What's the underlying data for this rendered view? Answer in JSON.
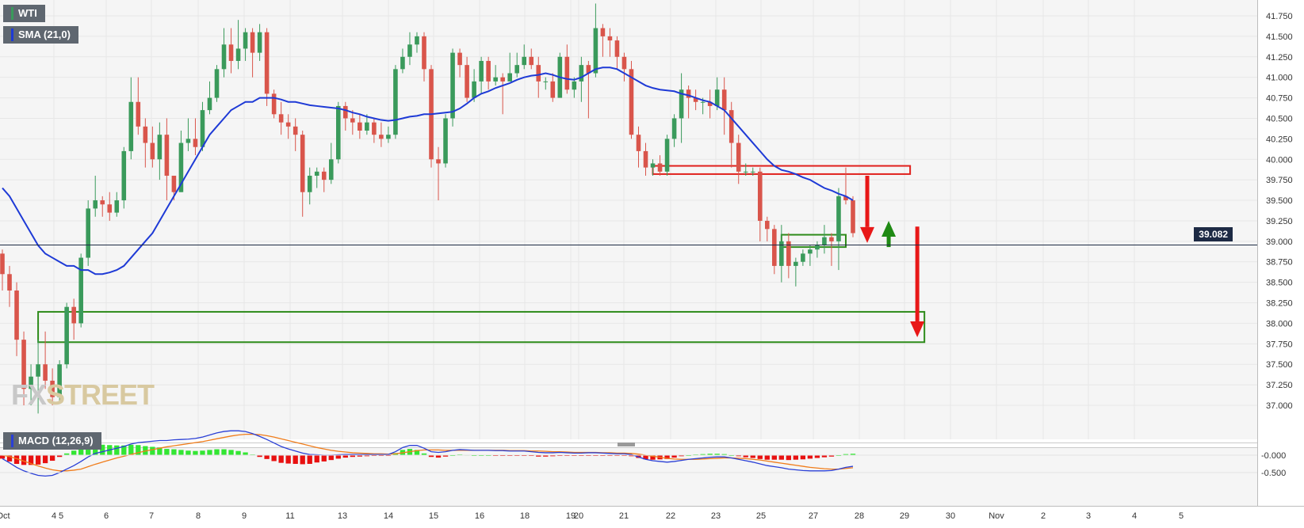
{
  "badges": {
    "instrument": "WTI",
    "indicator": "SMA (21,0)",
    "oscillator": "MACD (12,26,9)"
  },
  "last_price": "39.082",
  "watermark": {
    "part1": "FX",
    "part2": "STREET"
  },
  "colors": {
    "bull": "#3a9a5b",
    "bear": "#d9554b",
    "sma": "#1e3ad6",
    "macd_line": "#2a3fd6",
    "signal_line": "#f07c1a",
    "hist_pos": "#33e633",
    "hist_neg": "#e81010",
    "zone_red": "#e0201c",
    "zone_green": "#2e8b1a"
  },
  "chart_data": {
    "type": "candlestick",
    "instrument": "WTI",
    "y_ticks": [
      "41.750",
      "41.500",
      "41.250",
      "41.000",
      "40.750",
      "40.500",
      "40.250",
      "40.000",
      "39.750",
      "39.500",
      "39.250",
      "39.000",
      "38.750",
      "38.500",
      "38.250",
      "38.000",
      "37.750",
      "37.500",
      "37.250",
      "37.000"
    ],
    "y_range": [
      36.85,
      41.9
    ],
    "x_ticks": [
      "Oct",
      "4",
      "5",
      "6",
      "7",
      "8",
      "9",
      "11",
      "13",
      "14",
      "15",
      "16",
      "18",
      "19",
      "20",
      "21",
      "22",
      "23",
      "25",
      "27",
      "28",
      "29",
      "30",
      "Nov",
      "2",
      "3",
      "4",
      "5"
    ],
    "last_price": 39.082,
    "sma_period": 21,
    "macd_params": [
      12,
      26,
      9
    ],
    "macd_ticks": [
      "-0.000",
      "-0.500"
    ],
    "candles": [
      [
        38.85,
        38.6,
        38.9,
        38.4
      ],
      [
        38.6,
        38.4,
        38.7,
        38.2
      ],
      [
        38.4,
        37.8,
        38.5,
        37.6
      ],
      [
        37.8,
        37.2,
        37.9,
        37.0
      ],
      [
        37.2,
        37.35,
        37.5,
        37.0
      ],
      [
        37.35,
        37.5,
        37.8,
        36.9
      ],
      [
        37.5,
        37.3,
        37.9,
        37.2
      ],
      [
        37.3,
        37.1,
        37.45,
        37.0
      ],
      [
        37.1,
        37.5,
        37.55,
        37.05
      ],
      [
        37.5,
        38.2,
        38.25,
        37.45
      ],
      [
        38.2,
        38.0,
        38.3,
        37.8
      ],
      [
        38.0,
        38.8,
        38.85,
        37.95
      ],
      [
        38.8,
        39.4,
        39.5,
        38.7
      ],
      [
        39.4,
        39.5,
        39.8,
        39.3
      ],
      [
        39.5,
        39.45,
        39.55,
        39.3
      ],
      [
        39.45,
        39.35,
        39.6,
        39.25
      ],
      [
        39.35,
        39.5,
        39.6,
        39.3
      ],
      [
        39.5,
        40.1,
        40.15,
        39.4
      ],
      [
        40.1,
        40.7,
        41.0,
        40.0
      ],
      [
        40.7,
        40.4,
        41.0,
        40.3
      ],
      [
        40.4,
        40.2,
        40.5,
        39.9
      ],
      [
        40.2,
        40.0,
        40.4,
        39.9
      ],
      [
        40.0,
        40.3,
        40.45,
        39.75
      ],
      [
        40.3,
        39.8,
        40.5,
        39.5
      ],
      [
        39.8,
        39.6,
        39.7,
        39.5
      ],
      [
        39.6,
        40.2,
        40.35,
        39.6
      ],
      [
        40.2,
        40.25,
        40.5,
        40.1
      ],
      [
        40.25,
        40.15,
        40.5,
        40.05
      ],
      [
        40.15,
        40.6,
        40.7,
        40.1
      ],
      [
        40.6,
        40.75,
        40.95,
        40.55
      ],
      [
        40.75,
        41.1,
        41.15,
        40.7
      ],
      [
        41.1,
        41.4,
        41.6,
        41.0
      ],
      [
        41.4,
        41.2,
        41.6,
        41.05
      ],
      [
        41.2,
        41.35,
        41.7,
        41.1
      ],
      [
        41.35,
        41.55,
        41.6,
        41.2
      ],
      [
        41.55,
        41.3,
        41.6,
        41.0
      ],
      [
        41.3,
        41.55,
        41.65,
        41.2
      ],
      [
        41.55,
        40.8,
        41.6,
        40.65
      ],
      [
        40.8,
        40.55,
        40.85,
        40.5
      ],
      [
        40.55,
        40.45,
        40.7,
        40.3
      ],
      [
        40.45,
        40.4,
        40.55,
        40.25
      ],
      [
        40.4,
        40.3,
        40.5,
        40.1
      ],
      [
        40.3,
        39.6,
        40.35,
        39.3
      ],
      [
        39.6,
        39.8,
        39.9,
        39.45
      ],
      [
        39.8,
        39.85,
        39.9,
        39.65
      ],
      [
        39.85,
        39.75,
        39.9,
        39.6
      ],
      [
        39.75,
        40.0,
        40.2,
        39.7
      ],
      [
        40.0,
        40.65,
        40.7,
        39.95
      ],
      [
        40.65,
        40.5,
        40.7,
        40.35
      ],
      [
        40.5,
        40.45,
        40.6,
        40.3
      ],
      [
        40.45,
        40.35,
        40.55,
        40.25
      ],
      [
        40.35,
        40.45,
        40.55,
        40.3
      ],
      [
        40.45,
        40.3,
        40.5,
        40.2
      ],
      [
        40.3,
        40.25,
        40.45,
        40.15
      ],
      [
        40.25,
        40.3,
        40.4,
        40.2
      ],
      [
        40.3,
        41.1,
        41.15,
        40.25
      ],
      [
        41.1,
        41.25,
        41.35,
        41.05
      ],
      [
        41.25,
        41.4,
        41.55,
        41.15
      ],
      [
        41.4,
        41.5,
        41.55,
        41.3
      ],
      [
        41.5,
        41.1,
        41.55,
        40.95
      ],
      [
        41.1,
        40.0,
        41.15,
        39.9
      ],
      [
        40.0,
        39.95,
        40.15,
        39.5
      ],
      [
        39.95,
        40.5,
        40.55,
        39.9
      ],
      [
        40.5,
        41.3,
        41.35,
        40.4
      ],
      [
        41.3,
        41.15,
        41.35,
        41.0
      ],
      [
        41.15,
        40.75,
        41.25,
        40.7
      ],
      [
        40.75,
        40.95,
        41.1,
        40.7
      ],
      [
        40.95,
        41.2,
        41.25,
        40.8
      ],
      [
        41.2,
        40.95,
        41.25,
        40.85
      ],
      [
        40.95,
        41.0,
        41.15,
        40.9
      ],
      [
        41.0,
        40.95,
        41.05,
        40.55
      ],
      [
        40.95,
        41.05,
        41.3,
        40.95
      ],
      [
        41.05,
        41.15,
        41.3,
        41.0
      ],
      [
        41.15,
        41.25,
        41.4,
        41.1
      ],
      [
        41.25,
        41.15,
        41.35,
        41.1
      ],
      [
        41.15,
        40.95,
        41.25,
        40.75
      ],
      [
        40.95,
        40.95,
        41.0,
        40.85
      ],
      [
        40.95,
        40.75,
        41.05,
        40.7
      ],
      [
        40.75,
        41.25,
        41.3,
        40.75
      ],
      [
        41.25,
        40.85,
        41.4,
        40.8
      ],
      [
        40.85,
        40.95,
        41.0,
        40.75
      ],
      [
        40.95,
        41.15,
        41.25,
        40.7
      ],
      [
        41.15,
        41.05,
        41.2,
        40.5
      ],
      [
        41.05,
        41.6,
        41.9,
        41.0
      ],
      [
        41.6,
        41.5,
        41.65,
        41.25
      ],
      [
        41.5,
        41.45,
        41.6,
        41.25
      ],
      [
        41.45,
        41.25,
        41.5,
        41.1
      ],
      [
        41.25,
        41.1,
        41.3,
        40.95
      ],
      [
        41.1,
        40.3,
        41.2,
        40.25
      ],
      [
        40.3,
        40.1,
        40.4,
        39.9
      ],
      [
        40.1,
        39.9,
        40.2,
        39.8
      ],
      [
        39.9,
        39.95,
        40.0,
        39.8
      ],
      [
        39.95,
        39.85,
        40.05,
        39.8
      ],
      [
        39.85,
        40.25,
        40.3,
        39.8
      ],
      [
        40.25,
        40.5,
        40.55,
        40.15
      ],
      [
        40.5,
        40.85,
        41.05,
        40.2
      ],
      [
        40.85,
        40.75,
        40.9,
        40.5
      ],
      [
        40.75,
        40.7,
        40.85,
        40.6
      ],
      [
        40.7,
        40.7,
        40.75,
        40.55
      ],
      [
        40.7,
        40.65,
        40.85,
        40.5
      ],
      [
        40.65,
        40.85,
        41.0,
        40.6
      ],
      [
        40.85,
        40.6,
        41.0,
        40.3
      ],
      [
        40.6,
        40.2,
        40.7,
        39.9
      ],
      [
        40.2,
        39.85,
        40.3,
        39.7
      ],
      [
        39.85,
        39.85,
        39.95,
        39.8
      ],
      [
        39.85,
        39.85,
        39.9,
        39.8
      ],
      [
        39.85,
        39.25,
        39.9,
        39.0
      ],
      [
        39.25,
        39.15,
        39.3,
        39.0
      ],
      [
        39.15,
        38.7,
        39.2,
        38.6
      ],
      [
        38.7,
        39.0,
        39.2,
        38.5
      ],
      [
        39.0,
        38.7,
        39.1,
        38.55
      ],
      [
        38.7,
        38.75,
        38.8,
        38.45
      ],
      [
        38.75,
        38.85,
        38.9,
        38.7
      ],
      [
        38.85,
        38.9,
        38.95,
        38.7
      ],
      [
        38.9,
        38.95,
        39.0,
        38.8
      ],
      [
        38.95,
        39.05,
        39.2,
        38.85
      ],
      [
        39.05,
        39.0,
        39.1,
        38.7
      ],
      [
        39.0,
        39.55,
        39.65,
        38.65
      ],
      [
        39.55,
        39.5,
        39.9,
        39.45
      ],
      [
        39.5,
        39.1,
        39.55,
        39.05
      ]
    ],
    "sma_values": [
      39.65,
      39.55,
      39.4,
      39.25,
      39.1,
      38.95,
      38.85,
      38.8,
      38.75,
      38.7,
      38.7,
      38.65,
      38.65,
      38.6,
      38.6,
      38.62,
      38.65,
      38.7,
      38.8,
      38.9,
      39.0,
      39.1,
      39.25,
      39.4,
      39.55,
      39.7,
      39.85,
      40.0,
      40.15,
      40.3,
      40.4,
      40.5,
      40.6,
      40.65,
      40.7,
      40.7,
      40.75,
      40.75,
      40.75,
      40.73,
      40.7,
      40.7,
      40.68,
      40.66,
      40.65,
      40.64,
      40.63,
      40.62,
      40.6,
      40.57,
      40.55,
      40.52,
      40.5,
      40.48,
      40.47,
      40.48,
      40.5,
      40.52,
      40.53,
      40.55,
      40.55,
      40.56,
      40.57,
      40.58,
      40.62,
      40.68,
      40.75,
      40.8,
      40.83,
      40.87,
      40.9,
      40.93,
      40.97,
      41.0,
      41.02,
      41.03,
      41.05,
      41.03,
      41.0,
      40.98,
      40.97,
      41.0,
      41.05,
      41.1,
      41.12,
      41.12,
      41.1,
      41.05,
      41.0,
      40.95,
      40.9,
      40.87,
      40.85,
      40.84,
      40.83,
      40.8,
      40.78,
      40.75,
      40.72,
      40.7,
      40.65,
      40.6,
      40.5,
      40.4,
      40.3,
      40.2,
      40.1,
      40.0,
      39.92,
      39.87,
      39.85,
      39.82,
      39.78,
      39.75,
      39.7,
      39.65,
      39.62,
      39.58,
      39.55,
      39.5
    ],
    "macd_line": [
      -0.1,
      -0.22,
      -0.35,
      -0.45,
      -0.52,
      -0.58,
      -0.6,
      -0.58,
      -0.5,
      -0.4,
      -0.3,
      -0.18,
      -0.05,
      0.05,
      0.1,
      0.15,
      0.2,
      0.25,
      0.32,
      0.36,
      0.38,
      0.4,
      0.42,
      0.42,
      0.44,
      0.45,
      0.46,
      0.48,
      0.52,
      0.58,
      0.64,
      0.68,
      0.7,
      0.7,
      0.68,
      0.62,
      0.54,
      0.45,
      0.35,
      0.25,
      0.18,
      0.12,
      0.06,
      0.02,
      0.01,
      0.0,
      0.0,
      0.01,
      0.02,
      0.02,
      0.02,
      0.02,
      0.02,
      0.02,
      0.02,
      0.1,
      0.22,
      0.28,
      0.28,
      0.2,
      0.1,
      0.08,
      0.1,
      0.14,
      0.16,
      0.15,
      0.14,
      0.14,
      0.14,
      0.13,
      0.13,
      0.12,
      0.12,
      0.12,
      0.1,
      0.08,
      0.07,
      0.07,
      0.08,
      0.07,
      0.06,
      0.06,
      0.07,
      0.07,
      0.06,
      0.05,
      0.04,
      0.04,
      0.02,
      -0.05,
      -0.12,
      -0.16,
      -0.18,
      -0.2,
      -0.18,
      -0.15,
      -0.12,
      -0.1,
      -0.08,
      -0.06,
      -0.05,
      -0.05,
      -0.08,
      -0.12,
      -0.16,
      -0.2,
      -0.25,
      -0.3,
      -0.33,
      -0.36,
      -0.4,
      -0.42,
      -0.44,
      -0.45,
      -0.45,
      -0.45,
      -0.44,
      -0.4,
      -0.35,
      -0.32
    ],
    "signal_line": [
      0.0,
      -0.04,
      -0.1,
      -0.17,
      -0.24,
      -0.31,
      -0.37,
      -0.42,
      -0.45,
      -0.45,
      -0.43,
      -0.4,
      -0.33,
      -0.26,
      -0.2,
      -0.14,
      -0.08,
      -0.03,
      0.02,
      0.07,
      0.12,
      0.16,
      0.2,
      0.24,
      0.27,
      0.3,
      0.33,
      0.36,
      0.39,
      0.43,
      0.47,
      0.51,
      0.55,
      0.58,
      0.6,
      0.6,
      0.59,
      0.56,
      0.52,
      0.47,
      0.42,
      0.37,
      0.32,
      0.27,
      0.22,
      0.18,
      0.14,
      0.11,
      0.09,
      0.07,
      0.06,
      0.05,
      0.04,
      0.04,
      0.03,
      0.04,
      0.07,
      0.1,
      0.13,
      0.15,
      0.15,
      0.15,
      0.14,
      0.14,
      0.14,
      0.14,
      0.14,
      0.14,
      0.14,
      0.14,
      0.14,
      0.13,
      0.13,
      0.13,
      0.12,
      0.12,
      0.11,
      0.1,
      0.1,
      0.09,
      0.08,
      0.08,
      0.08,
      0.08,
      0.07,
      0.07,
      0.06,
      0.06,
      0.05,
      0.03,
      0.0,
      -0.03,
      -0.06,
      -0.09,
      -0.11,
      -0.12,
      -0.12,
      -0.12,
      -0.11,
      -0.1,
      -0.09,
      -0.08,
      -0.08,
      -0.09,
      -0.1,
      -0.12,
      -0.14,
      -0.17,
      -0.2,
      -0.23,
      -0.26,
      -0.29,
      -0.32,
      -0.35,
      -0.37,
      -0.39,
      -0.4,
      -0.4,
      -0.38,
      -0.36
    ],
    "zones": [
      {
        "type": "resistance",
        "low": 39.82,
        "high": 39.92,
        "from_index": 91,
        "to_index": 127
      },
      {
        "type": "range",
        "low": 38.93,
        "high": 39.08,
        "from_index": 109,
        "to_index": 118
      },
      {
        "type": "support",
        "low": 37.77,
        "high": 38.14,
        "from_index": 5,
        "to_index": 129
      }
    ],
    "arrows": [
      {
        "direction": "down",
        "color": "red",
        "from": 39.8,
        "to": 38.98,
        "index": 121
      },
      {
        "direction": "up",
        "color": "green",
        "from": 38.93,
        "to": 39.25,
        "index": 124
      },
      {
        "direction": "down",
        "color": "red",
        "from": 39.18,
        "to": 37.83,
        "index": 128
      }
    ]
  }
}
